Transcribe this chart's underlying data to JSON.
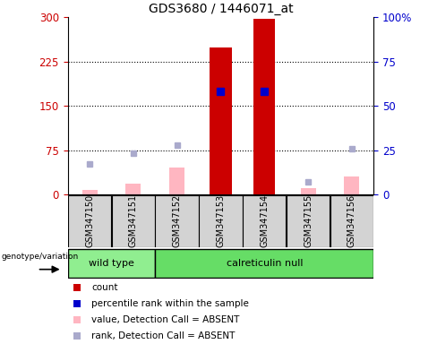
{
  "title": "GDS3680 / 1446071_at",
  "samples": [
    "GSM347150",
    "GSM347151",
    "GSM347152",
    "GSM347153",
    "GSM347154",
    "GSM347155",
    "GSM347156"
  ],
  "count_values": [
    null,
    null,
    null,
    248,
    297,
    null,
    null
  ],
  "count_color": "#CC0000",
  "percentile_rank_values": [
    null,
    null,
    null,
    58,
    58,
    null,
    null
  ],
  "percentile_rank_color": "#0000CC",
  "absent_value_values": [
    8,
    18,
    45,
    null,
    null,
    10,
    30
  ],
  "absent_value_color": "#FFB6C1",
  "absent_rank_values": [
    17,
    23,
    28,
    null,
    null,
    7,
    26
  ],
  "absent_rank_color": "#AAAACC",
  "ylim_left": [
    0,
    300
  ],
  "ylim_right": [
    0,
    100
  ],
  "yticks_left": [
    0,
    75,
    150,
    225,
    300
  ],
  "yticks_right": [
    0,
    25,
    50,
    75,
    100
  ],
  "ylabel_left_color": "#CC0000",
  "ylabel_right_color": "#0000CC",
  "bar_width": 0.5,
  "wt_color": "#90EE90",
  "cn_color": "#66DD66",
  "legend_items": [
    {
      "label": "count",
      "color": "#CC0000"
    },
    {
      "label": "percentile rank within the sample",
      "color": "#0000CC"
    },
    {
      "label": "value, Detection Call = ABSENT",
      "color": "#FFB6C1"
    },
    {
      "label": "rank, Detection Call = ABSENT",
      "color": "#AAAACC"
    }
  ]
}
